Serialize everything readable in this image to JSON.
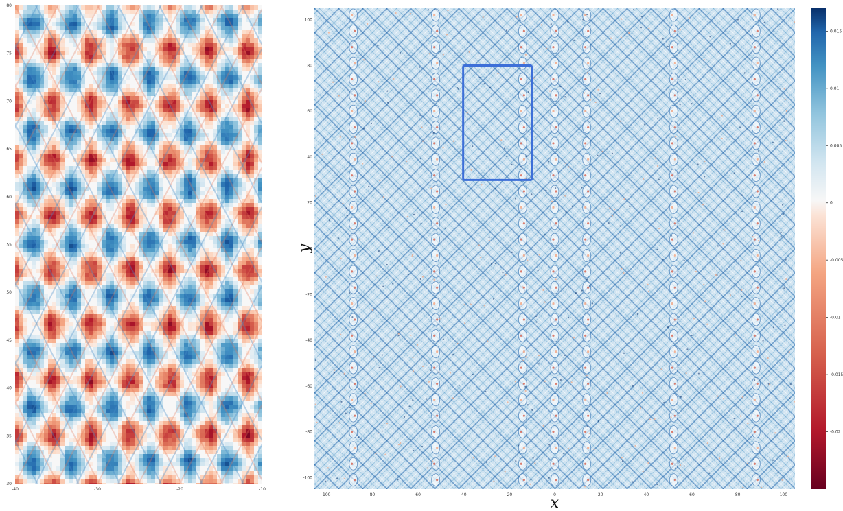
{
  "colors": {
    "zero": "#f7f7f7",
    "positive_mid": "#6fa9d6",
    "positive_max": "#08306b",
    "negative_mid": "#f2a282",
    "negative_max": "#67001f",
    "inset_box": "#3d6fd8"
  },
  "chart_data": [
    {
      "type": "heatmap",
      "title": "",
      "xlabel": "",
      "ylabel": "",
      "xlim": [
        -40,
        -10
      ],
      "ylim": [
        30,
        80
      ],
      "x_ticks": [
        "-40",
        "-30",
        "-20",
        "-10"
      ],
      "y_ticks": [
        "30",
        "35",
        "40",
        "45",
        "50",
        "55",
        "60",
        "65",
        "70",
        "75",
        "80"
      ],
      "grid": false,
      "colormap": "RdBu (red negative, blue positive)",
      "diagonal_centers_x": [
        -34.5,
        -25,
        -15.5
      ],
      "diagonal_centers_y": [
        31,
        42.5,
        54,
        65.5,
        77
      ],
      "description_of_field": "zoom of the boxed region: diamond lattice of interfering wave fronts"
    },
    {
      "type": "heatmap",
      "title": "",
      "xlabel": "x",
      "ylabel": "y",
      "xlim": [
        -105,
        105
      ],
      "ylim": [
        -105,
        105
      ],
      "x_ticks": [
        "-100",
        "-80",
        "-60",
        "-40",
        "-20",
        "0",
        "20",
        "40",
        "60",
        "80",
        "100"
      ],
      "y_ticks": [
        "100",
        "80",
        "60",
        "40",
        "20",
        "0",
        "-20",
        "-40",
        "-60",
        "-80",
        "-100"
      ],
      "grid": false,
      "inset_region": {
        "x": [
          -40,
          -10
        ],
        "y": [
          30,
          80
        ]
      },
      "stripe_centers_x": [
        -88,
        -52,
        -14,
        0,
        14,
        52,
        88
      ]
    }
  ],
  "colorbar": {
    "range": [
      -0.025,
      0.017
    ],
    "tick_labels": [
      "0.015",
      "0.01",
      "0.005",
      "0",
      "-0.005",
      "-0.01",
      "-0.015",
      "-0.02"
    ],
    "tick_values": [
      0.015,
      0.01,
      0.005,
      0,
      -0.005,
      -0.01,
      -0.015,
      -0.02
    ]
  }
}
